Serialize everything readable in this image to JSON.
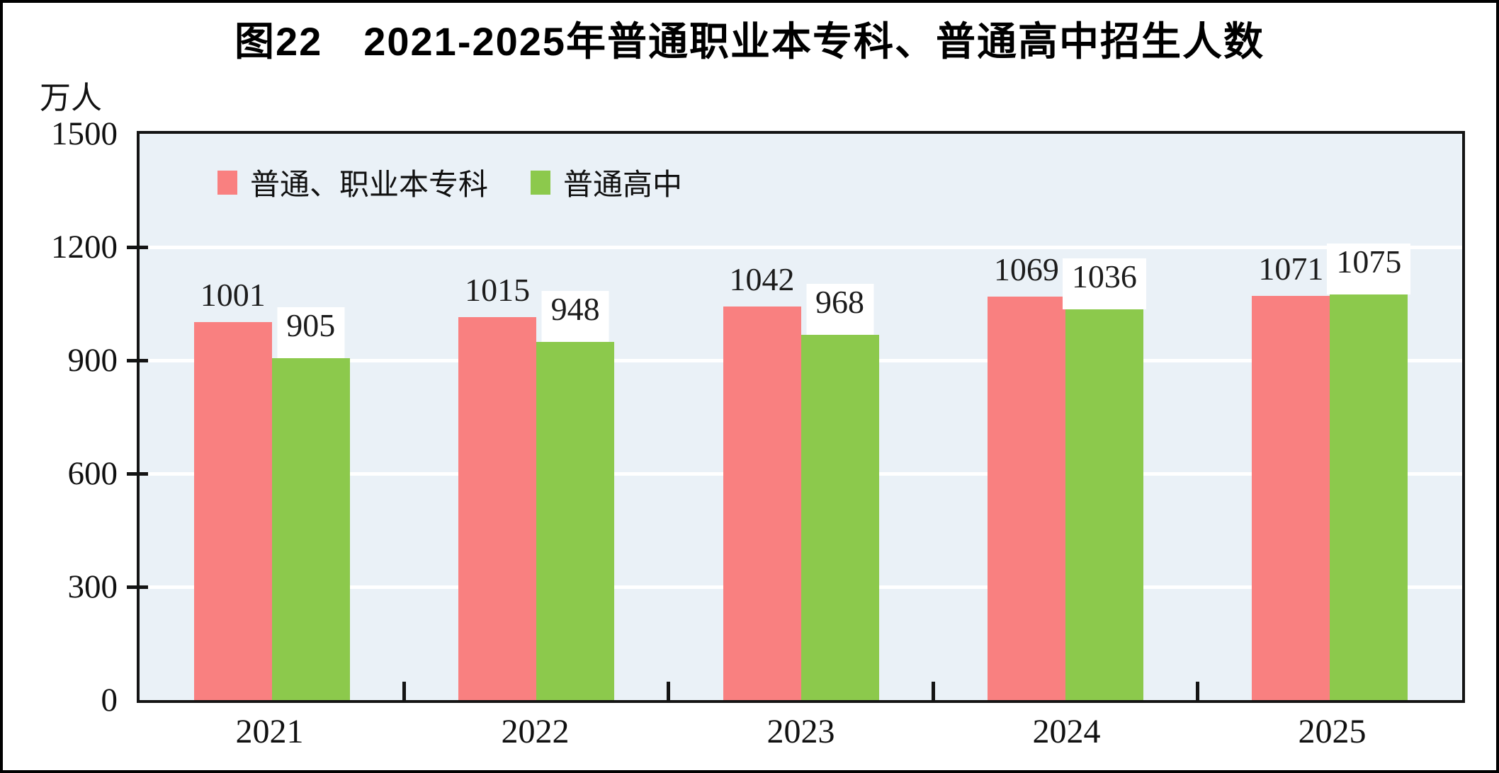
{
  "title": "图22　2021-2025年普通职业本专科、普通高中招生人数",
  "unit_label": "万人",
  "colors": {
    "plot_background": "#EAF1F7",
    "gridline": "#FFFFFF",
    "frame": "#141414",
    "series_red": "#F98080",
    "series_green": "#8CC94C"
  },
  "chart_data": {
    "type": "bar",
    "title": "图22　2021-2025年普通职业本专科、普通高中招生人数",
    "ylabel": "万人",
    "xlabel": "",
    "categories": [
      "2021",
      "2022",
      "2023",
      "2024",
      "2025"
    ],
    "series": [
      {
        "id": "benzhuanke",
        "name": "普通、职业本专科",
        "color": "#F98080",
        "label_style": "plain",
        "values": [
          1001,
          1015,
          1042,
          1069,
          1071
        ]
      },
      {
        "id": "gaozhong",
        "name": "普通高中",
        "color": "#8CC94C",
        "label_style": "boxed",
        "values": [
          905,
          948,
          968,
          1036,
          1075
        ]
      }
    ],
    "ylim": [
      0,
      1500
    ],
    "yticks": [
      0,
      300,
      600,
      900,
      1200,
      1500
    ],
    "grid": true,
    "legend_position": "top-left-inside"
  }
}
